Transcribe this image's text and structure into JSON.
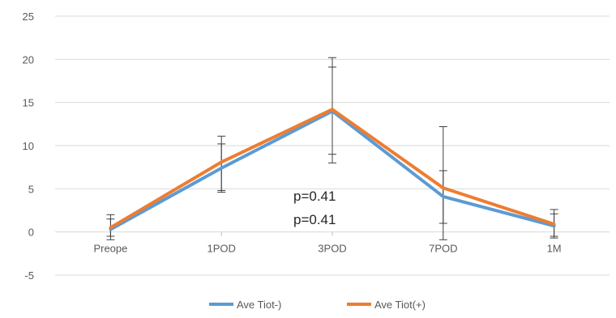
{
  "chart_data": {
    "type": "line",
    "title": "",
    "xlabel": "",
    "ylabel": "",
    "categories": [
      "Preope",
      "1POD",
      "3POD",
      "7POD",
      "1M"
    ],
    "y_ticks": [
      "-5",
      "0",
      "5",
      "10",
      "15",
      "20",
      "25"
    ],
    "ylim": [
      -5,
      25
    ],
    "grid": true,
    "legend_position": "bottom",
    "series": [
      {
        "name": "Ave Tiot-)",
        "color": "#5B9BD5",
        "values": [
          0.3,
          7.4,
          14.0,
          4.1,
          0.7
        ],
        "error_low": [
          -0.9,
          4.6,
          8.0,
          -0.9,
          -0.7
        ],
        "error_high": [
          1.5,
          10.2,
          20.2,
          7.1,
          2.1
        ]
      },
      {
        "name": "Ave Tiot(+)",
        "color": "#ED7D31",
        "values": [
          0.5,
          8.1,
          14.2,
          5.1,
          0.9
        ],
        "error_low": [
          -0.5,
          4.8,
          9.0,
          1.0,
          -0.5
        ],
        "error_high": [
          2.0,
          11.1,
          19.1,
          12.2,
          2.6
        ]
      }
    ],
    "annotations": [
      "p=0.41",
      "p=0.41"
    ]
  }
}
